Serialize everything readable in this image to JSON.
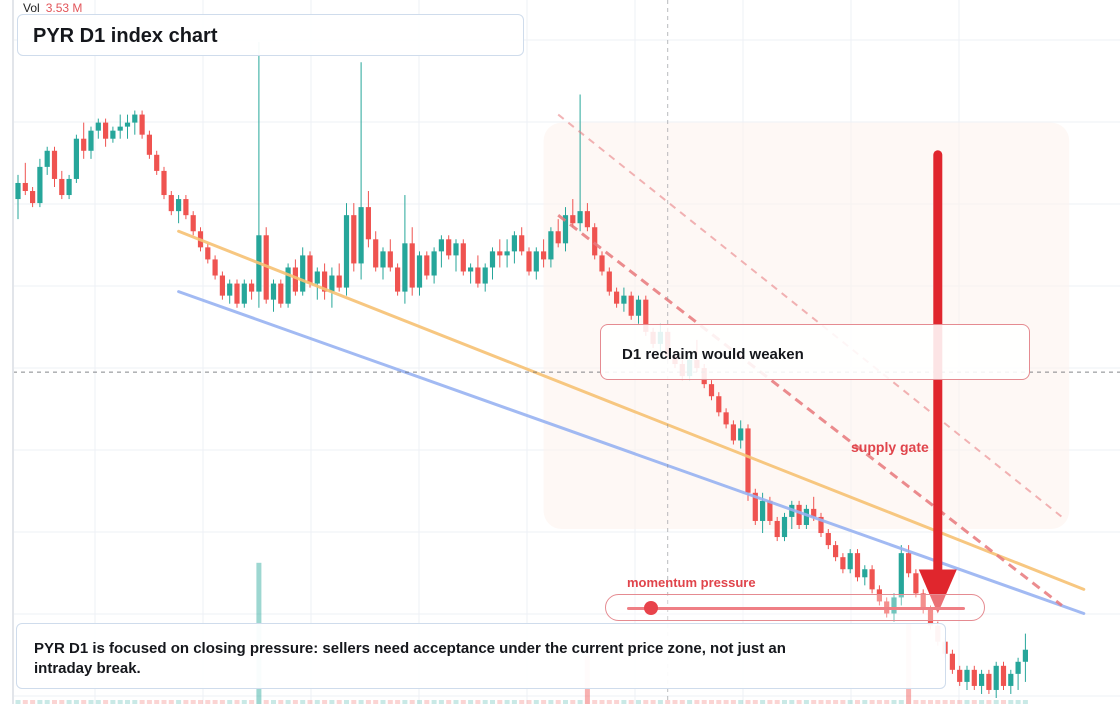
{
  "volume": {
    "label": "Vol",
    "value": "3.53 M"
  },
  "title": "PYR D1 index chart",
  "callout": "D1 reclaim would weaken",
  "zone_label": "supply gate",
  "momentum": {
    "label": "momentum pressure",
    "level": 0.07
  },
  "note": "PYR D1 is focused on closing pressure: sellers need acceptance under the current price zone, not just an intraday break.",
  "colors": {
    "up": "#26a69a",
    "down": "#ef5350",
    "orange_line": "#f7c274",
    "blue_line": "#98b3f2",
    "resistance": "#e8787c",
    "arrow": "#e0262d"
  },
  "chart_data": {
    "type": "candlestick",
    "title": "PYR D1 index chart",
    "timeframe": "D1",
    "series_volume_label": "Vol",
    "last_volume": "3.53 M",
    "candles": [
      [
        10.0,
        10.6,
        9.5,
        10.4
      ],
      [
        10.4,
        10.9,
        10.1,
        10.2
      ],
      [
        10.2,
        10.3,
        9.8,
        9.9
      ],
      [
        9.9,
        11.0,
        9.8,
        10.8
      ],
      [
        10.8,
        11.3,
        10.6,
        11.2
      ],
      [
        11.2,
        11.3,
        10.3,
        10.5
      ],
      [
        10.5,
        10.7,
        10.0,
        10.1
      ],
      [
        10.1,
        10.6,
        10.0,
        10.5
      ],
      [
        10.5,
        11.6,
        10.4,
        11.5
      ],
      [
        11.5,
        11.9,
        11.0,
        11.2
      ],
      [
        11.2,
        11.8,
        11.0,
        11.7
      ],
      [
        11.7,
        12.0,
        11.5,
        11.9
      ],
      [
        11.9,
        12.0,
        11.3,
        11.5
      ],
      [
        11.5,
        11.8,
        11.4,
        11.7
      ],
      [
        11.7,
        12.1,
        11.5,
        11.8
      ],
      [
        11.8,
        12.1,
        11.5,
        11.9
      ],
      [
        11.9,
        12.2,
        11.6,
        12.1
      ],
      [
        12.1,
        12.2,
        11.5,
        11.6
      ],
      [
        11.6,
        11.7,
        11.0,
        11.1
      ],
      [
        11.1,
        11.2,
        10.6,
        10.7
      ],
      [
        10.7,
        10.8,
        10.0,
        10.1
      ],
      [
        10.1,
        10.2,
        9.6,
        9.7
      ],
      [
        9.7,
        10.1,
        9.4,
        10.0
      ],
      [
        10.0,
        10.1,
        9.5,
        9.6
      ],
      [
        9.6,
        9.7,
        9.1,
        9.2
      ],
      [
        9.2,
        9.3,
        8.7,
        8.8
      ],
      [
        8.8,
        8.9,
        8.4,
        8.5
      ],
      [
        8.5,
        8.6,
        8.0,
        8.1
      ],
      [
        8.1,
        8.2,
        7.5,
        7.6
      ],
      [
        7.6,
        8.0,
        7.4,
        7.9
      ],
      [
        7.9,
        8.0,
        7.3,
        7.4
      ],
      [
        7.4,
        8.0,
        7.3,
        7.9
      ],
      [
        7.9,
        8.0,
        7.5,
        7.7
      ],
      [
        7.7,
        13.9,
        7.3,
        9.1
      ],
      [
        9.1,
        9.3,
        7.4,
        7.5
      ],
      [
        7.5,
        8.0,
        7.2,
        7.9
      ],
      [
        7.9,
        8.0,
        7.3,
        7.4
      ],
      [
        7.4,
        8.4,
        7.3,
        8.3
      ],
      [
        8.3,
        8.5,
        7.6,
        7.7
      ],
      [
        7.7,
        8.8,
        7.6,
        8.6
      ],
      [
        8.6,
        8.7,
        7.8,
        7.9
      ],
      [
        7.9,
        8.3,
        7.5,
        8.2
      ],
      [
        8.2,
        8.4,
        7.5,
        7.7
      ],
      [
        7.7,
        8.3,
        7.3,
        8.1
      ],
      [
        8.1,
        8.4,
        7.7,
        7.8
      ],
      [
        7.8,
        9.9,
        7.6,
        9.6
      ],
      [
        9.6,
        9.9,
        8.2,
        8.4
      ],
      [
        8.4,
        13.4,
        8.0,
        9.8
      ],
      [
        9.8,
        10.2,
        8.8,
        9.0
      ],
      [
        9.0,
        9.2,
        8.2,
        8.3
      ],
      [
        8.3,
        8.8,
        8.0,
        8.7
      ],
      [
        8.7,
        9.0,
        8.2,
        8.3
      ],
      [
        8.3,
        8.4,
        7.6,
        7.7
      ],
      [
        7.7,
        10.1,
        7.4,
        8.9
      ],
      [
        8.9,
        9.3,
        7.6,
        7.8
      ],
      [
        7.8,
        8.7,
        7.6,
        8.6
      ],
      [
        8.6,
        8.7,
        8.0,
        8.1
      ],
      [
        8.1,
        8.8,
        7.9,
        8.7
      ],
      [
        8.7,
        9.1,
        8.3,
        9.0
      ],
      [
        9.0,
        9.1,
        8.5,
        8.6
      ],
      [
        8.6,
        9.0,
        8.2,
        8.9
      ],
      [
        8.9,
        9.0,
        8.1,
        8.2
      ],
      [
        8.2,
        8.4,
        7.9,
        8.3
      ],
      [
        8.3,
        8.6,
        7.8,
        7.9
      ],
      [
        7.9,
        8.4,
        7.7,
        8.3
      ],
      [
        8.3,
        8.8,
        8.0,
        8.7
      ],
      [
        8.7,
        9.0,
        8.3,
        8.6
      ],
      [
        8.6,
        9.0,
        8.3,
        8.7
      ],
      [
        8.7,
        9.2,
        8.4,
        9.1
      ],
      [
        9.1,
        9.3,
        8.6,
        8.7
      ],
      [
        8.7,
        8.8,
        8.1,
        8.2
      ],
      [
        8.2,
        8.8,
        8.0,
        8.7
      ],
      [
        8.7,
        9.0,
        8.3,
        8.5
      ],
      [
        8.5,
        9.3,
        8.3,
        9.2
      ],
      [
        9.2,
        9.5,
        8.8,
        8.9
      ],
      [
        8.9,
        9.8,
        8.7,
        9.6
      ],
      [
        9.6,
        10.0,
        9.3,
        9.4
      ],
      [
        9.4,
        12.6,
        9.2,
        9.7
      ],
      [
        9.7,
        9.9,
        9.2,
        9.3
      ],
      [
        9.3,
        9.4,
        8.5,
        8.6
      ],
      [
        8.6,
        8.7,
        8.1,
        8.2
      ],
      [
        8.2,
        8.3,
        7.6,
        7.7
      ],
      [
        7.7,
        7.8,
        7.3,
        7.4
      ],
      [
        7.4,
        7.8,
        7.2,
        7.6
      ],
      [
        7.6,
        7.7,
        7.0,
        7.1
      ],
      [
        7.1,
        7.6,
        6.9,
        7.5
      ],
      [
        7.5,
        7.6,
        6.6,
        6.7
      ],
      [
        6.7,
        6.8,
        6.3,
        6.4
      ],
      [
        6.4,
        6.9,
        6.2,
        6.7
      ],
      [
        6.7,
        6.8,
        6.0,
        6.1
      ],
      [
        6.1,
        6.2,
        5.8,
        5.9
      ],
      [
        5.9,
        6.0,
        5.5,
        5.6
      ],
      [
        5.6,
        6.1,
        5.5,
        6.0
      ],
      [
        6.0,
        6.5,
        5.7,
        5.8
      ],
      [
        5.8,
        5.9,
        5.3,
        5.4
      ],
      [
        5.4,
        5.5,
        5.0,
        5.1
      ],
      [
        5.1,
        5.2,
        4.6,
        4.7
      ],
      [
        4.7,
        4.8,
        4.3,
        4.4
      ],
      [
        4.4,
        4.5,
        3.9,
        4.0
      ],
      [
        4.0,
        4.5,
        3.8,
        4.3
      ],
      [
        4.3,
        4.4,
        2.5,
        2.7
      ],
      [
        2.7,
        2.8,
        1.9,
        2.0
      ],
      [
        2.0,
        2.7,
        1.7,
        2.5
      ],
      [
        2.5,
        2.6,
        1.9,
        2.0
      ],
      [
        2.0,
        2.1,
        1.5,
        1.6
      ],
      [
        1.6,
        2.2,
        1.5,
        2.1
      ],
      [
        2.1,
        2.5,
        1.8,
        2.4
      ],
      [
        2.4,
        2.5,
        1.8,
        1.9
      ],
      [
        1.9,
        2.4,
        1.8,
        2.3
      ],
      [
        2.3,
        2.6,
        2.0,
        2.1
      ],
      [
        2.1,
        2.2,
        1.6,
        1.7
      ],
      [
        1.7,
        1.8,
        1.3,
        1.4
      ],
      [
        1.4,
        1.5,
        1.0,
        1.1
      ],
      [
        1.1,
        1.2,
        0.7,
        0.8
      ],
      [
        0.8,
        1.3,
        0.7,
        1.2
      ],
      [
        1.2,
        1.3,
        0.5,
        0.6
      ],
      [
        0.6,
        0.9,
        0.4,
        0.8
      ],
      [
        0.8,
        0.9,
        0.2,
        0.3
      ],
      [
        0.3,
        0.4,
        -0.1,
        0.0
      ],
      [
        0.0,
        0.1,
        -0.4,
        -0.3
      ],
      [
        -0.3,
        0.2,
        -0.5,
        0.1
      ],
      [
        0.1,
        1.4,
        -0.1,
        1.2
      ],
      [
        1.2,
        1.4,
        0.6,
        0.7
      ],
      [
        0.7,
        0.8,
        0.1,
        0.2
      ],
      [
        0.2,
        0.3,
        -0.3,
        -0.2
      ],
      [
        -0.2,
        -0.1,
        -0.7,
        -0.6
      ],
      [
        -0.6,
        -0.5,
        -1.1,
        -1.0
      ],
      [
        -1.0,
        -0.9,
        -1.4,
        -1.3
      ],
      [
        -1.3,
        -1.2,
        -1.8,
        -1.7
      ],
      [
        -1.7,
        -1.6,
        -2.1,
        -2.0
      ],
      [
        -2.0,
        -1.6,
        -2.2,
        -1.7
      ],
      [
        -1.7,
        -1.6,
        -2.2,
        -2.1
      ],
      [
        -2.1,
        -1.7,
        -2.3,
        -1.8
      ],
      [
        -1.8,
        -1.7,
        -2.3,
        -2.2
      ],
      [
        -2.2,
        -1.5,
        -2.4,
        -1.6
      ],
      [
        -1.6,
        -1.5,
        -2.2,
        -2.1
      ],
      [
        -2.1,
        -1.7,
        -2.3,
        -1.8
      ],
      [
        -1.8,
        -1.4,
        -2.2,
        -1.5
      ],
      [
        -1.5,
        -0.8,
        -2.0,
        -1.2
      ]
    ],
    "volume_spikes": [
      {
        "index": 33,
        "value": 3.53
      },
      {
        "index": 78,
        "value": 1.2
      },
      {
        "index": 122,
        "value": 2.0
      }
    ],
    "price_range": [
      -2.4,
      14.5
    ],
    "trendlines": [
      {
        "name": "orange",
        "from": [
          22,
          9.2
        ],
        "to": [
          146,
          0.3
        ]
      },
      {
        "name": "blue",
        "from": [
          22,
          7.7
        ],
        "to": [
          146,
          -0.3
        ]
      },
      {
        "name": "resistance-dashed",
        "from": [
          74,
          9.6
        ],
        "to": [
          143,
          -0.1
        ]
      },
      {
        "name": "resistance-faint",
        "from": [
          74,
          12.1
        ],
        "to": [
          143,
          2.1
        ]
      }
    ],
    "arrow": {
      "from_price": 11.1,
      "to_price": -0.3,
      "index": 126
    },
    "crosshair": {
      "index": 89,
      "price": 5.7
    },
    "zone": {
      "from_index": 72,
      "to_index": 144,
      "price_top": 11.9,
      "price_bottom": 1.8
    },
    "grid": true
  }
}
